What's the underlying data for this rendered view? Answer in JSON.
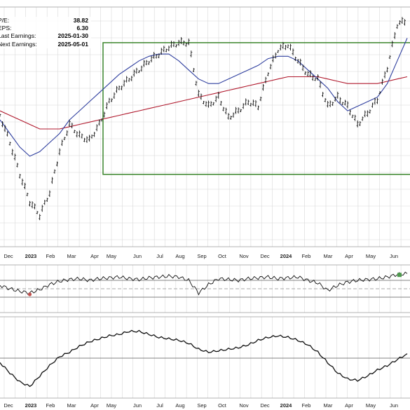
{
  "info_panel": [
    {
      "label": "P/E:",
      "value": "38.82"
    },
    {
      "label": "EPS:",
      "value": "6.30"
    },
    {
      "label": "Last Earnings:",
      "value": "2025-01-30"
    },
    {
      "label": "Next Earnings:",
      "value": "2025-05-01"
    }
  ],
  "x_axis_labels": [
    {
      "text": "Dec",
      "bold": false
    },
    {
      "text": "2023",
      "bold": true
    },
    {
      "text": "Feb",
      "bold": false
    },
    {
      "text": "Mar",
      "bold": false
    },
    {
      "text": "Apr",
      "bold": false
    },
    {
      "text": "May",
      "bold": false
    },
    {
      "text": "Jun",
      "bold": false
    },
    {
      "text": "Jul",
      "bold": false
    },
    {
      "text": "Aug",
      "bold": false
    },
    {
      "text": "Sep",
      "bold": false
    },
    {
      "text": "Oct",
      "bold": false
    },
    {
      "text": "Nov",
      "bold": false
    },
    {
      "text": "Dec",
      "bold": false
    },
    {
      "text": "2024",
      "bold": true
    },
    {
      "text": "Feb",
      "bold": false
    },
    {
      "text": "Mar",
      "bold": false
    },
    {
      "text": "Apr",
      "bold": false
    },
    {
      "text": "May",
      "bold": false
    },
    {
      "text": "Jun",
      "bold": false
    }
  ],
  "colors": {
    "price": "#111111",
    "ma_short": "#2f3f9f",
    "ma_long": "#b0182c",
    "box": "#2e7d1e",
    "grid": "#d8d8d8",
    "panel_border": "#9a9a9a",
    "oversold_fill": "#c0504d",
    "overbought_fill": "#4e9a4e"
  },
  "chart_data": {
    "type": "line",
    "x": [
      "Dec",
      "2023",
      "Feb",
      "Mar",
      "Apr",
      "May",
      "Jun",
      "Jul",
      "Aug",
      "Sep",
      "Oct",
      "Nov",
      "Dec",
      "2024",
      "Feb",
      "Mar",
      "Apr",
      "May",
      "Jun"
    ],
    "y_scale": [
      0,
      100
    ],
    "price_series": [
      56,
      44,
      30,
      18,
      12,
      22,
      40,
      52,
      47,
      45,
      52,
      62,
      68,
      72,
      76,
      80,
      83,
      86,
      88,
      88,
      65,
      60,
      64,
      55,
      58,
      62,
      60,
      75,
      85,
      87,
      80,
      74,
      72,
      60,
      64,
      60,
      52,
      57,
      63,
      77,
      96,
      98
    ],
    "ma_short": [
      54,
      48,
      42,
      38,
      40,
      44,
      48,
      54,
      58,
      62,
      66,
      70,
      74,
      77,
      80,
      82,
      83,
      83,
      80,
      76,
      72,
      70,
      70,
      72,
      74,
      76,
      78,
      81,
      82,
      82,
      80,
      76,
      72,
      68,
      62,
      58,
      60,
      62,
      64,
      70,
      80,
      90
    ],
    "ma_long": [
      58,
      56,
      54,
      52,
      50,
      50,
      50,
      51,
      52,
      53,
      54,
      55,
      56,
      57,
      58,
      59,
      60,
      61,
      62,
      63,
      64,
      65,
      66,
      67,
      68,
      69,
      70,
      71,
      72,
      73,
      73,
      73,
      73,
      72,
      71,
      70,
      70,
      70,
      70,
      71,
      72,
      73
    ],
    "box": {
      "x_start": "Apr",
      "y_top": 88,
      "y_bottom": 30
    },
    "oscillator_series": [
      58,
      50,
      44,
      40,
      48,
      60,
      68,
      72,
      74,
      70,
      74,
      76,
      78,
      74,
      72,
      76,
      78,
      80,
      78,
      70,
      40,
      60,
      74,
      72,
      70,
      74,
      76,
      78,
      74,
      76,
      78,
      70,
      64,
      46,
      58,
      66,
      70,
      72,
      74,
      78,
      84,
      86
    ],
    "oscillator_levels": [
      30,
      50,
      70
    ],
    "momentum_series": [
      44,
      30,
      18,
      12,
      26,
      40,
      52,
      58,
      66,
      72,
      76,
      80,
      82,
      86,
      86,
      82,
      78,
      76,
      74,
      70,
      62,
      58,
      60,
      62,
      64,
      68,
      74,
      78,
      80,
      78,
      74,
      68,
      58,
      44,
      30,
      22,
      20,
      26,
      34,
      40,
      48,
      56
    ],
    "momentum_level": 50
  }
}
